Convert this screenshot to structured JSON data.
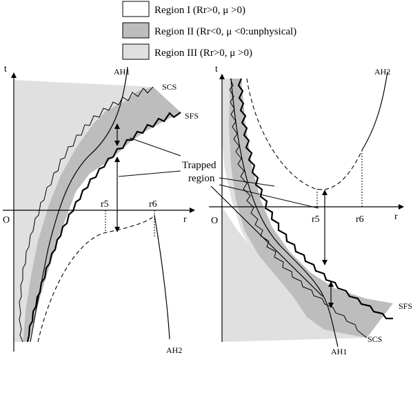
{
  "legend": {
    "region1_text": "Region I (Rr>0, μ >0)",
    "region2_text": "Region II (Rr<0, μ <0:unphysical)",
    "region3_text": "Region III (Rr>0, μ >0)"
  },
  "left": {
    "t_axis": "t",
    "r_axis": "r",
    "origin": "O",
    "r5": "r5",
    "r6": "r6",
    "ah1": "AH1",
    "ah2": "AH2",
    "scs": "SCS",
    "sfs": "SFS"
  },
  "right": {
    "t_axis": "t",
    "r_axis": "r",
    "origin": "O",
    "r5": "r5",
    "r6": "r6",
    "ah1": "AH1",
    "ah2": "AH2",
    "scs": "SCS",
    "sfs": "SFS"
  },
  "trapped": {
    "line1": "Trapped",
    "line2": "region"
  },
  "colors": {
    "region1": "#ffffff",
    "region2": "#bdbdbd",
    "region3": "#e0e0e0",
    "line": "#000000"
  }
}
